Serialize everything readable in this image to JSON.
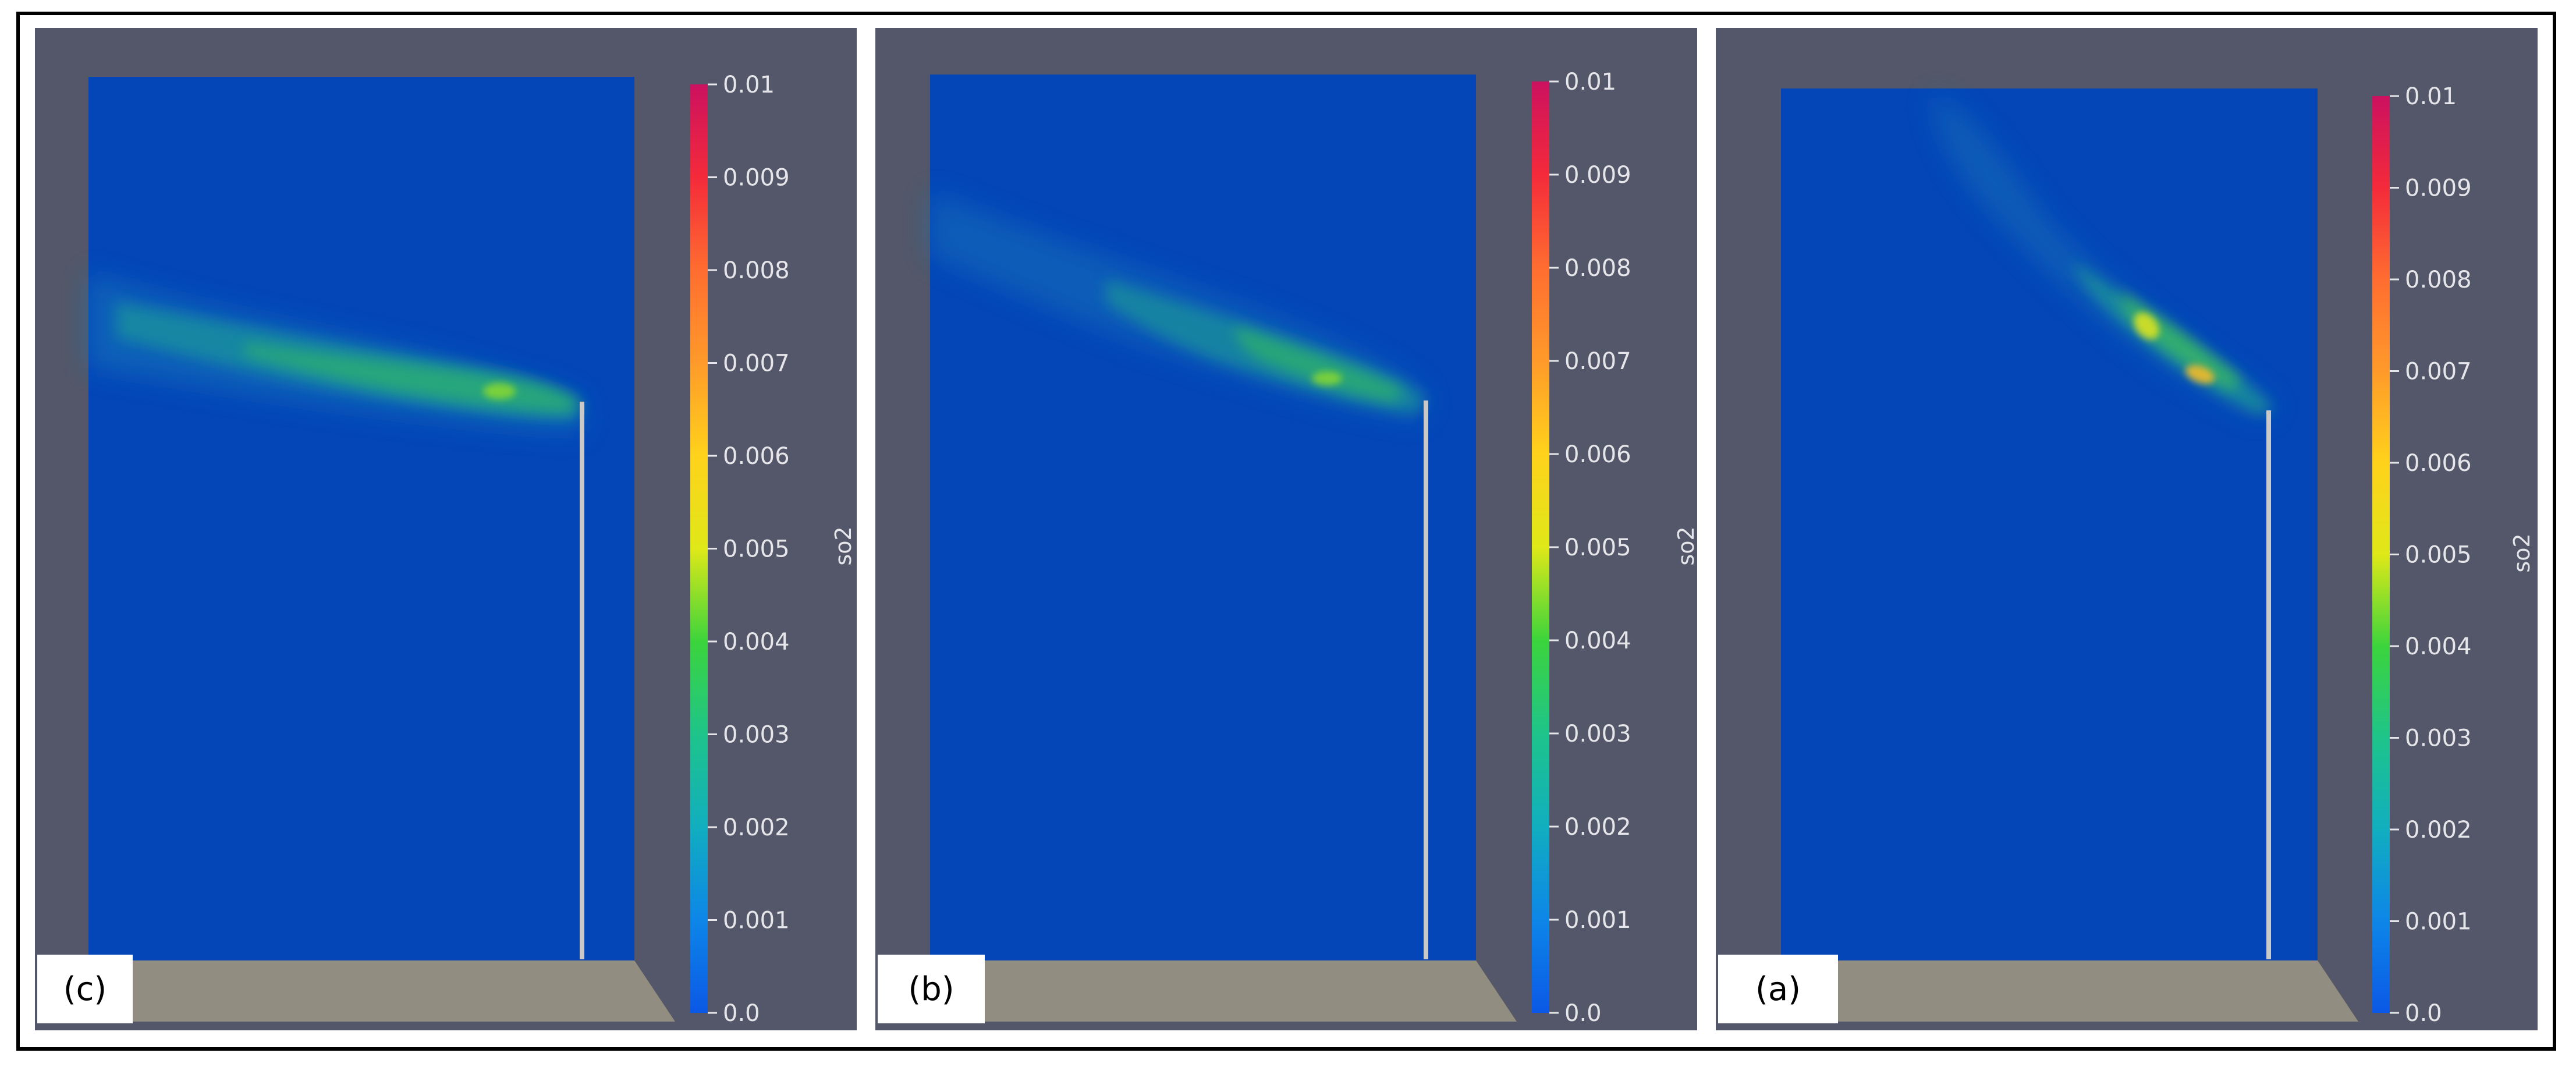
{
  "colors": {
    "background": "#535769",
    "domain": "#0446b8",
    "ground": "#918d81",
    "stack": "#c9c9c9",
    "label_bg": "#ffffff",
    "tick_text": "#e6e6ea"
  },
  "colorbar": {
    "title": "so2",
    "ticks": [
      "0.01",
      "0.009",
      "0.008",
      "0.007",
      "0.006",
      "0.005",
      "0.004",
      "0.003",
      "0.002",
      "0.001",
      "0.0"
    ],
    "min": 0.0,
    "max": 0.01,
    "stops": [
      {
        "value": 0.0,
        "color": "#0b58e6"
      },
      {
        "value": 0.001,
        "color": "#0d86e8"
      },
      {
        "value": 0.002,
        "color": "#11aebf"
      },
      {
        "value": 0.003,
        "color": "#1ec48a"
      },
      {
        "value": 0.004,
        "color": "#3cd43c"
      },
      {
        "value": 0.005,
        "color": "#dfe818"
      },
      {
        "value": 0.006,
        "color": "#ffd21b"
      },
      {
        "value": 0.007,
        "color": "#ff9a2a"
      },
      {
        "value": 0.008,
        "color": "#ff6d30"
      },
      {
        "value": 0.009,
        "color": "#f42a3a"
      },
      {
        "value": 0.01,
        "color": "#cc1160"
      }
    ]
  },
  "panels": [
    {
      "id": "c",
      "label": "(c)"
    },
    {
      "id": "b",
      "label": "(b)"
    },
    {
      "id": "a",
      "label": "(a)"
    }
  ]
}
